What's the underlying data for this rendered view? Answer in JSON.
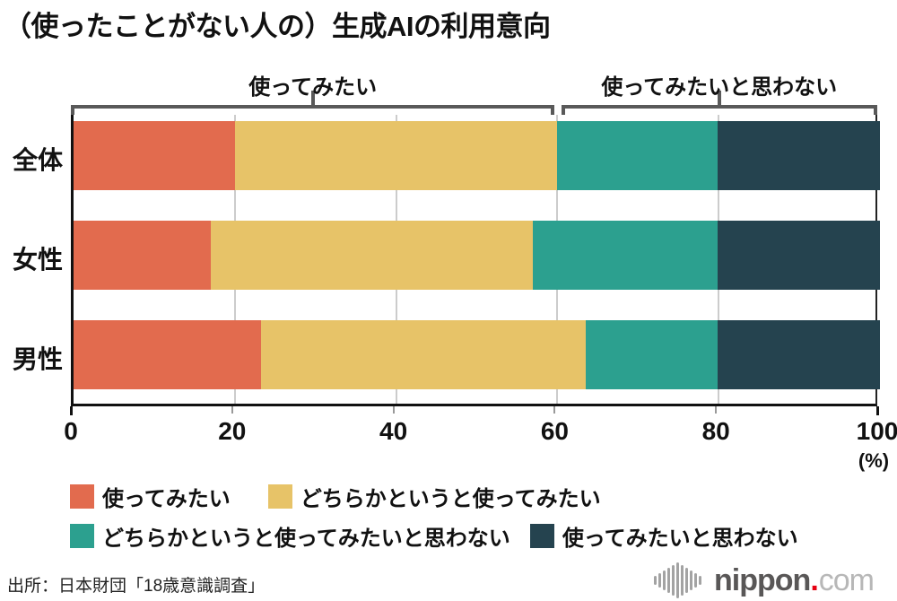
{
  "chart_data": {
    "type": "bar",
    "orientation": "horizontal-stacked",
    "title": "（使ったことがない人の）生成AIの利用意向",
    "categories": [
      "全体",
      "女性",
      "男性"
    ],
    "series": [
      {
        "name": "使ってみたい",
        "color": "#E26B4E",
        "values": [
          20.0,
          17.0,
          23.3
        ]
      },
      {
        "name": "どちらかというと使ってみたい",
        "color": "#E7C368",
        "values": [
          40.0,
          40.0,
          40.2
        ]
      },
      {
        "name": "どちらかというと使ってみたいと思わない",
        "color": "#2CA08F",
        "values": [
          19.9,
          22.9,
          16.4
        ]
      },
      {
        "name": "使ってみたいと思わない",
        "color": "#25434F",
        "values": [
          20.1,
          20.1,
          20.1
        ]
      }
    ],
    "x_ticks": [
      0,
      20,
      40,
      60,
      80,
      100
    ],
    "xlim": [
      0,
      100
    ],
    "x_unit": "(%)",
    "grid": "vertical",
    "legend_position": "bottom",
    "annotations": [
      {
        "label": "使ってみたい",
        "from": 0,
        "to": 60.0
      },
      {
        "label": "使ってみたいと思わない",
        "from": 60.8,
        "to": 100
      }
    ]
  },
  "footer": {
    "source": "出所：日本財団「18歳意識調査」",
    "logo": {
      "icon": "soundwave-bars-icon",
      "name_bold": "nippon",
      "dot": ".",
      "name_light": "com",
      "dot_color": "#e60012",
      "bar_heights": [
        10,
        16,
        22,
        28,
        34,
        40,
        34,
        28,
        22,
        16,
        10
      ]
    }
  }
}
